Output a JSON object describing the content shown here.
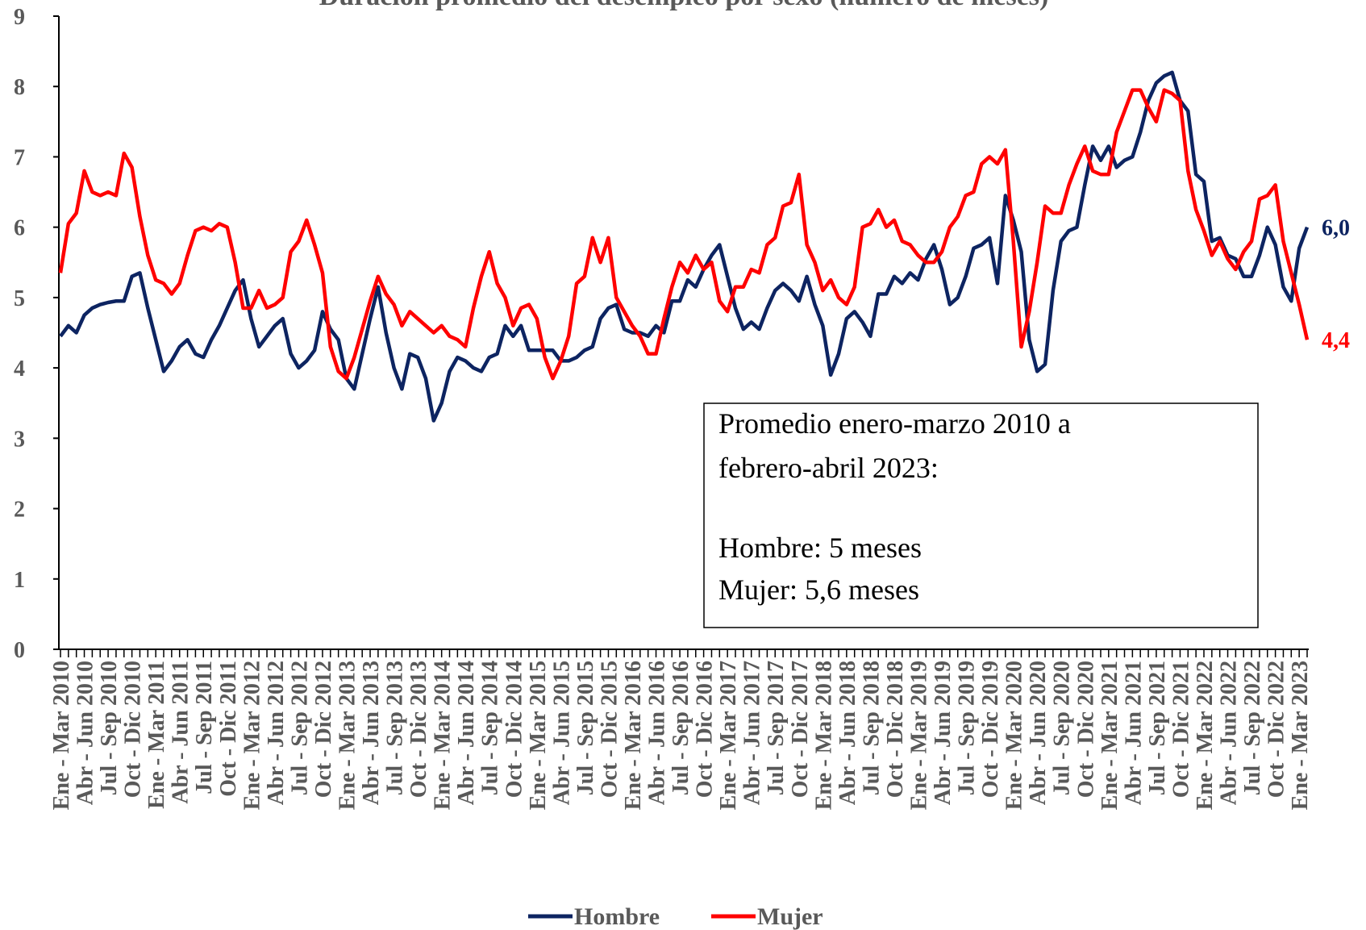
{
  "chart_data": {
    "type": "line",
    "title": "Duración promedio del desempleo por sexo (número de meses)",
    "categories": [
      "Ene - Mar 2010",
      null,
      null,
      "Abr - Jun 2010",
      null,
      null,
      "Jul - Sep 2010",
      null,
      null,
      "Oct - Dic 2010",
      null,
      null,
      "Ene - Mar 2011",
      null,
      null,
      "Abr - Jun 2011",
      null,
      null,
      "Jul - Sep 2011",
      null,
      null,
      "Oct - Dic 2011",
      null,
      null,
      "Ene - Mar 2012",
      null,
      null,
      "Abr - Jun 2012",
      null,
      null,
      "Jul - Sep 2012",
      null,
      null,
      "Oct - Dic 2012",
      null,
      null,
      "Ene - Mar 2013",
      null,
      null,
      "Abr - Jun 2013",
      null,
      null,
      "Jul - Sep 2013",
      null,
      null,
      "Oct - Dic 2013",
      null,
      null,
      "Ene - Mar 2014",
      null,
      null,
      "Abr - Jun 2014",
      null,
      null,
      "Jul - Sep 2014",
      null,
      null,
      "Oct - Dic 2014",
      null,
      null,
      "Ene - Mar 2015",
      null,
      null,
      "Abr - Jun 2015",
      null,
      null,
      "Jul - Sep 2015",
      null,
      null,
      "Oct - Dic 2015",
      null,
      null,
      "Ene - Mar 2016",
      null,
      null,
      "Abr - Jun 2016",
      null,
      null,
      "Jul - Sep 2016",
      null,
      null,
      "Oct - Dic 2016",
      null,
      null,
      "Ene - Mar 2017",
      null,
      null,
      "Abr - Jun 2017",
      null,
      null,
      "Jul - Sep 2017",
      null,
      null,
      "Oct - Dic 2017",
      null,
      null,
      "Ene - Mar 2018",
      null,
      null,
      "Abr - Jun 2018",
      null,
      null,
      "Jul - Sep 2018",
      null,
      null,
      "Oct - Dic 2018",
      null,
      null,
      "Ene - Mar 2019",
      null,
      null,
      "Abr - Jun 2019",
      null,
      null,
      "Jul - Sep 2019",
      null,
      null,
      "Oct - Dic 2019",
      null,
      null,
      "Ene - Mar 2020",
      null,
      null,
      "Abr - Jun 2020",
      null,
      null,
      "Jul - Sep 2020",
      null,
      null,
      "Oct - Dic 2020",
      null,
      null,
      "Ene - Mar 2021",
      null,
      null,
      "Abr - Jun 2021",
      null,
      null,
      "Jul - Sep 2021",
      null,
      null,
      "Oct - Dic 2021",
      null,
      null,
      "Ene - Mar 2022",
      null,
      null,
      "Abr - Jun 2022",
      null,
      null,
      "Jul - Sep 2022",
      null,
      null,
      "Oct - Dic 2022",
      null,
      null,
      "Ene - Mar 2023",
      null
    ],
    "series": [
      {
        "name": "Hombre",
        "color": "#0d2461",
        "end_label": "6,0",
        "values": [
          4.45,
          4.6,
          4.5,
          4.75,
          4.85,
          4.9,
          4.93,
          4.95,
          4.95,
          5.3,
          5.35,
          4.85,
          4.4,
          3.95,
          4.1,
          4.3,
          4.4,
          4.2,
          4.15,
          4.4,
          4.6,
          4.85,
          5.1,
          5.25,
          4.7,
          4.3,
          4.45,
          4.6,
          4.7,
          4.2,
          4.0,
          4.1,
          4.25,
          4.8,
          4.55,
          4.4,
          3.85,
          3.7,
          4.2,
          4.7,
          5.15,
          4.5,
          4.0,
          3.7,
          4.2,
          4.15,
          3.85,
          3.25,
          3.5,
          3.95,
          4.15,
          4.1,
          4.0,
          3.95,
          4.15,
          4.2,
          4.6,
          4.45,
          4.6,
          4.25,
          4.25,
          4.25,
          4.25,
          4.1,
          4.1,
          4.15,
          4.25,
          4.3,
          4.7,
          4.85,
          4.9,
          4.55,
          4.5,
          4.5,
          4.45,
          4.6,
          4.5,
          4.95,
          4.95,
          5.25,
          5.15,
          5.4,
          5.6,
          5.75,
          5.3,
          4.85,
          4.55,
          4.65,
          4.55,
          4.85,
          5.1,
          5.2,
          5.1,
          4.95,
          5.3,
          4.9,
          4.6,
          3.9,
          4.2,
          4.7,
          4.8,
          4.65,
          4.45,
          5.05,
          5.05,
          5.3,
          5.2,
          5.35,
          5.25,
          5.55,
          5.75,
          5.4,
          4.9,
          5.0,
          5.3,
          5.7,
          5.75,
          5.85,
          5.2,
          6.45,
          6.1,
          5.65,
          4.4,
          3.95,
          4.05,
          5.1,
          5.8,
          5.95,
          6.0,
          6.6,
          7.15,
          6.95,
          7.15,
          6.85,
          6.95,
          7.0,
          7.35,
          7.8,
          8.05,
          8.15,
          8.2,
          7.8,
          7.65,
          6.75,
          6.65,
          5.8,
          5.85,
          5.6,
          5.55,
          5.3,
          5.3,
          5.6,
          6.0,
          5.75,
          5.15,
          4.95,
          5.7,
          6.0
        ]
      },
      {
        "name": "Mujer",
        "color": "#ff0000",
        "end_label": "4,4",
        "values": [
          5.35,
          6.05,
          6.2,
          6.8,
          6.5,
          6.45,
          6.5,
          6.45,
          7.05,
          6.85,
          6.15,
          5.6,
          5.25,
          5.2,
          5.05,
          5.2,
          5.6,
          5.95,
          6.0,
          5.95,
          6.05,
          6.0,
          5.5,
          4.85,
          4.85,
          5.1,
          4.85,
          4.9,
          5.0,
          5.65,
          5.8,
          6.1,
          5.75,
          5.35,
          4.3,
          3.95,
          3.85,
          4.15,
          4.55,
          4.95,
          5.3,
          5.05,
          4.9,
          4.6,
          4.8,
          4.7,
          4.6,
          4.5,
          4.6,
          4.45,
          4.4,
          4.3,
          4.85,
          5.3,
          5.65,
          5.2,
          5.0,
          4.6,
          4.85,
          4.9,
          4.7,
          4.15,
          3.85,
          4.1,
          4.45,
          5.2,
          5.3,
          5.85,
          5.5,
          5.85,
          5.0,
          4.8,
          4.6,
          4.45,
          4.2,
          4.2,
          4.7,
          5.15,
          5.5,
          5.35,
          5.6,
          5.4,
          5.5,
          4.95,
          4.8,
          5.15,
          5.15,
          5.4,
          5.35,
          5.75,
          5.85,
          6.3,
          6.35,
          6.75,
          5.75,
          5.5,
          5.1,
          5.25,
          5.0,
          4.9,
          5.15,
          6.0,
          6.05,
          6.25,
          6.0,
          6.1,
          5.8,
          5.75,
          5.6,
          5.5,
          5.5,
          5.65,
          6.0,
          6.15,
          6.45,
          6.5,
          6.9,
          7.0,
          6.9,
          7.1,
          5.8,
          4.3,
          4.8,
          5.5,
          6.3,
          6.2,
          6.2,
          6.6,
          6.9,
          7.15,
          6.8,
          6.75,
          6.75,
          7.35,
          7.65,
          7.95,
          7.95,
          7.7,
          7.5,
          7.95,
          7.9,
          7.8,
          6.8,
          6.25,
          5.95,
          5.6,
          5.8,
          5.55,
          5.4,
          5.65,
          5.8,
          6.4,
          6.45,
          6.6,
          5.8,
          5.35,
          4.9,
          4.4
        ]
      }
    ],
    "ylim": [
      0,
      9
    ],
    "yticks": [
      0,
      1,
      2,
      3,
      4,
      5,
      6,
      7,
      8,
      9
    ],
    "annotation": [
      "Promedio enero-marzo 2010 a",
      "febrero-abril 2023:",
      "Hombre: 5 meses",
      "Mujer: 5,6 meses"
    ],
    "legend": "bottom"
  }
}
